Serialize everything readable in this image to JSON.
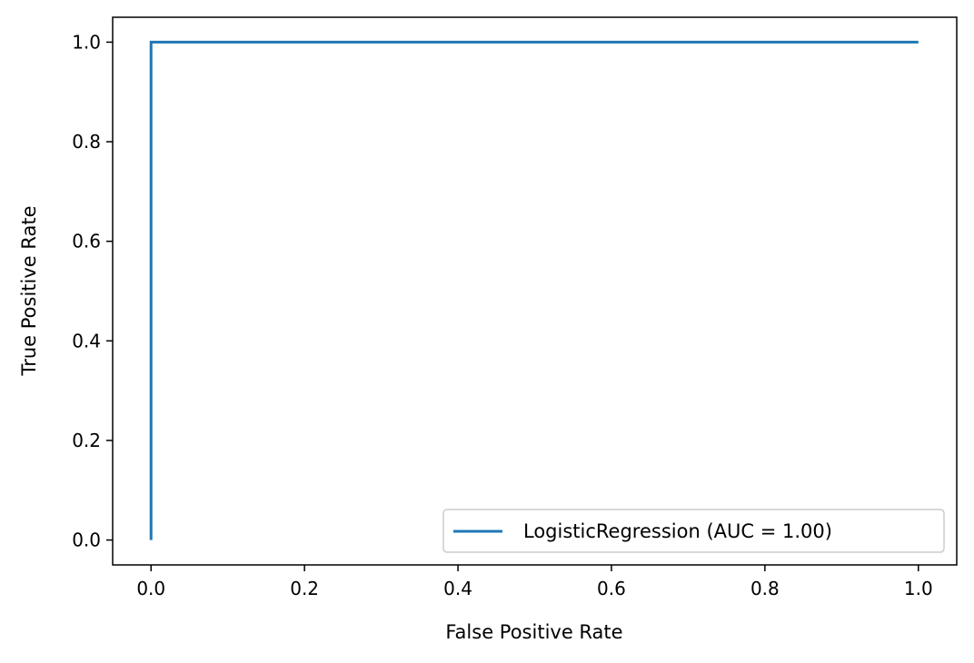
{
  "chart_data": {
    "type": "line",
    "title": "",
    "xlabel": "False Positive Rate",
    "ylabel": "True Positive Rate",
    "xlim": [
      -0.05,
      1.05
    ],
    "ylim": [
      -0.05,
      1.05
    ],
    "xticks": [
      0.0,
      0.2,
      0.4,
      0.6,
      0.8,
      1.0
    ],
    "yticks": [
      0.0,
      0.2,
      0.4,
      0.6,
      0.8,
      1.0
    ],
    "xtick_labels": [
      "0.0",
      "0.2",
      "0.4",
      "0.6",
      "0.8",
      "1.0"
    ],
    "ytick_labels": [
      "0.0",
      "0.2",
      "0.4",
      "0.6",
      "0.8",
      "1.0"
    ],
    "grid": false,
    "legend_position": "lower-right",
    "series": [
      {
        "name": "LogisticRegression (AUC = 1.00)",
        "color": "#1f77b4",
        "x": [
          0.0,
          0.0,
          1.0
        ],
        "y": [
          0.0,
          1.0,
          1.0
        ]
      }
    ]
  }
}
